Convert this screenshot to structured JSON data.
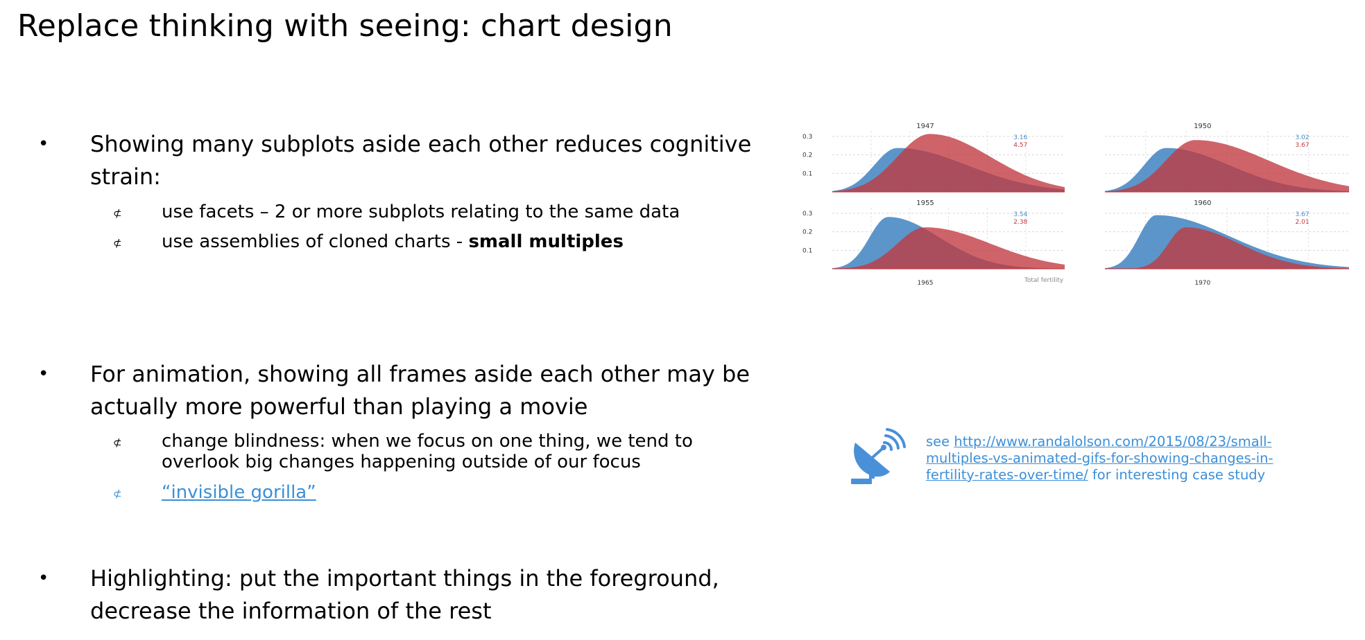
{
  "title": "Replace thinking with seeing: chart design",
  "bullets": [
    {
      "text": "Showing many subplots aside each other reduces cognitive strain:",
      "subs": [
        {
          "text": "use facets – 2 or more subplots relating to the same data"
        },
        {
          "text": "use assemblies of cloned charts - ",
          "bold": "small multiples"
        }
      ]
    },
    {
      "text": "For animation, showing all frames aside each other may be actually more powerful than playing a movie",
      "subs": [
        {
          "text": "change blindness: when we focus on one thing, we tend to overlook big changes happening outside of our focus"
        },
        {
          "text": "“invisible gorilla”"
        }
      ]
    },
    {
      "text": "Highlighting: put the important things in the foreground, decrease the information of the rest"
    }
  ],
  "sub_marker": "⊄",
  "bullet_marker": "•",
  "note": {
    "prefix": "see ",
    "url": "http://www.randalolson.com/2015/08/23/small-multiples-vs-animated-gifs-for-showing-changes-in-fertility-rates-over-time/",
    "suffix": "  for interesting case study",
    "icon": "satellite-dish-icon"
  },
  "chart_data": {
    "type": "area",
    "xlabel": "Total fertility",
    "y_ticks": [
      "0.3",
      "0.2",
      "0.1"
    ],
    "ylim": [
      0,
      0.33
    ],
    "colors": {
      "series_a": "#4a8ac4",
      "series_b": "#c0393f"
    },
    "panels": [
      {
        "year": "1947",
        "label_a": "3.16",
        "label_b": "4.57"
      },
      {
        "year": "1950",
        "label_a": "3.02",
        "label_b": "3.67"
      },
      {
        "year": "1955",
        "label_a": "3.54",
        "label_b": "2.38"
      },
      {
        "year": "1960",
        "label_a": "3.67",
        "label_b": "2.01"
      }
    ],
    "cut_labels": [
      "1965",
      "1970"
    ]
  }
}
